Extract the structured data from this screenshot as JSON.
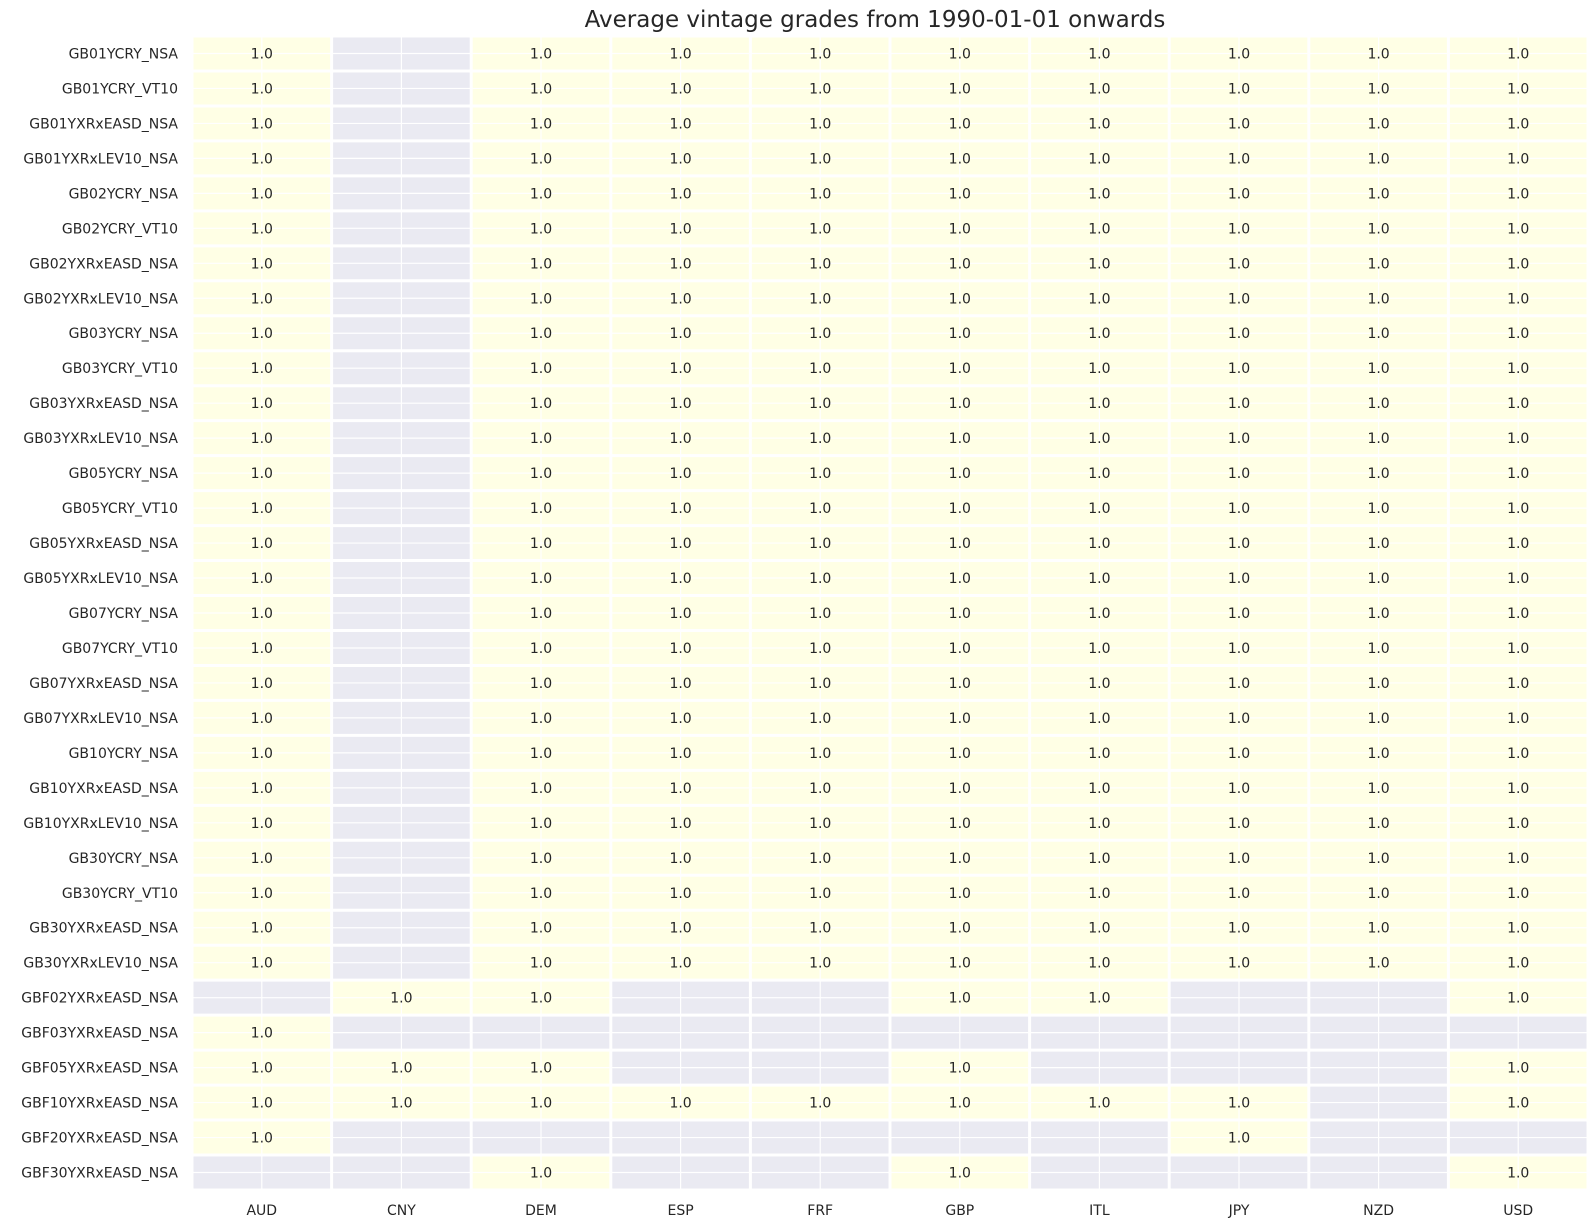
{
  "colors": {
    "filled": "#ffffe5",
    "missing": "#eaeaf2",
    "grid": "#ffffff",
    "text": "#262626"
  },
  "chart_data": {
    "type": "heatmap",
    "title": "Average vintage grades from 1990-01-01 onwards",
    "xlabel": "",
    "ylabel": "",
    "grid": true,
    "x_labels": [
      "AUD",
      "CNY",
      "DEM",
      "ESP",
      "FRF",
      "GBP",
      "ITL",
      "JPY",
      "NZD",
      "USD"
    ],
    "y_labels": [
      "GB01YCRY_NSA",
      "GB01YCRY_VT10",
      "GB01YXRxEASD_NSA",
      "GB01YXRxLEV10_NSA",
      "GB02YCRY_NSA",
      "GB02YCRY_VT10",
      "GB02YXRxEASD_NSA",
      "GB02YXRxLEV10_NSA",
      "GB03YCRY_NSA",
      "GB03YCRY_VT10",
      "GB03YXRxEASD_NSA",
      "GB03YXRxLEV10_NSA",
      "GB05YCRY_NSA",
      "GB05YCRY_VT10",
      "GB05YXRxEASD_NSA",
      "GB05YXRxLEV10_NSA",
      "GB07YCRY_NSA",
      "GB07YCRY_VT10",
      "GB07YXRxEASD_NSA",
      "GB07YXRxLEV10_NSA",
      "GB10YCRY_NSA",
      "GB10YXRxEASD_NSA",
      "GB10YXRxLEV10_NSA",
      "GB30YCRY_NSA",
      "GB30YCRY_VT10",
      "GB30YXRxEASD_NSA",
      "GB30YXRxLEV10_NSA",
      "GBF02YXRxEASD_NSA",
      "GBF03YXRxEASD_NSA",
      "GBF05YXRxEASD_NSA",
      "GBF10YXRxEASD_NSA",
      "GBF20YXRxEASD_NSA",
      "GBF30YXRxEASD_NSA"
    ],
    "values": [
      [
        1.0,
        null,
        1.0,
        1.0,
        1.0,
        1.0,
        1.0,
        1.0,
        1.0,
        1.0
      ],
      [
        1.0,
        null,
        1.0,
        1.0,
        1.0,
        1.0,
        1.0,
        1.0,
        1.0,
        1.0
      ],
      [
        1.0,
        null,
        1.0,
        1.0,
        1.0,
        1.0,
        1.0,
        1.0,
        1.0,
        1.0
      ],
      [
        1.0,
        null,
        1.0,
        1.0,
        1.0,
        1.0,
        1.0,
        1.0,
        1.0,
        1.0
      ],
      [
        1.0,
        null,
        1.0,
        1.0,
        1.0,
        1.0,
        1.0,
        1.0,
        1.0,
        1.0
      ],
      [
        1.0,
        null,
        1.0,
        1.0,
        1.0,
        1.0,
        1.0,
        1.0,
        1.0,
        1.0
      ],
      [
        1.0,
        null,
        1.0,
        1.0,
        1.0,
        1.0,
        1.0,
        1.0,
        1.0,
        1.0
      ],
      [
        1.0,
        null,
        1.0,
        1.0,
        1.0,
        1.0,
        1.0,
        1.0,
        1.0,
        1.0
      ],
      [
        1.0,
        null,
        1.0,
        1.0,
        1.0,
        1.0,
        1.0,
        1.0,
        1.0,
        1.0
      ],
      [
        1.0,
        null,
        1.0,
        1.0,
        1.0,
        1.0,
        1.0,
        1.0,
        1.0,
        1.0
      ],
      [
        1.0,
        null,
        1.0,
        1.0,
        1.0,
        1.0,
        1.0,
        1.0,
        1.0,
        1.0
      ],
      [
        1.0,
        null,
        1.0,
        1.0,
        1.0,
        1.0,
        1.0,
        1.0,
        1.0,
        1.0
      ],
      [
        1.0,
        null,
        1.0,
        1.0,
        1.0,
        1.0,
        1.0,
        1.0,
        1.0,
        1.0
      ],
      [
        1.0,
        null,
        1.0,
        1.0,
        1.0,
        1.0,
        1.0,
        1.0,
        1.0,
        1.0
      ],
      [
        1.0,
        null,
        1.0,
        1.0,
        1.0,
        1.0,
        1.0,
        1.0,
        1.0,
        1.0
      ],
      [
        1.0,
        null,
        1.0,
        1.0,
        1.0,
        1.0,
        1.0,
        1.0,
        1.0,
        1.0
      ],
      [
        1.0,
        null,
        1.0,
        1.0,
        1.0,
        1.0,
        1.0,
        1.0,
        1.0,
        1.0
      ],
      [
        1.0,
        null,
        1.0,
        1.0,
        1.0,
        1.0,
        1.0,
        1.0,
        1.0,
        1.0
      ],
      [
        1.0,
        null,
        1.0,
        1.0,
        1.0,
        1.0,
        1.0,
        1.0,
        1.0,
        1.0
      ],
      [
        1.0,
        null,
        1.0,
        1.0,
        1.0,
        1.0,
        1.0,
        1.0,
        1.0,
        1.0
      ],
      [
        1.0,
        null,
        1.0,
        1.0,
        1.0,
        1.0,
        1.0,
        1.0,
        1.0,
        1.0
      ],
      [
        1.0,
        null,
        1.0,
        1.0,
        1.0,
        1.0,
        1.0,
        1.0,
        1.0,
        1.0
      ],
      [
        1.0,
        null,
        1.0,
        1.0,
        1.0,
        1.0,
        1.0,
        1.0,
        1.0,
        1.0
      ],
      [
        1.0,
        null,
        1.0,
        1.0,
        1.0,
        1.0,
        1.0,
        1.0,
        1.0,
        1.0
      ],
      [
        1.0,
        null,
        1.0,
        1.0,
        1.0,
        1.0,
        1.0,
        1.0,
        1.0,
        1.0
      ],
      [
        1.0,
        null,
        1.0,
        1.0,
        1.0,
        1.0,
        1.0,
        1.0,
        1.0,
        1.0
      ],
      [
        1.0,
        null,
        1.0,
        1.0,
        1.0,
        1.0,
        1.0,
        1.0,
        1.0,
        1.0
      ],
      [
        null,
        1.0,
        1.0,
        null,
        null,
        1.0,
        1.0,
        null,
        null,
        1.0
      ],
      [
        1.0,
        null,
        null,
        null,
        null,
        null,
        null,
        null,
        null,
        null
      ],
      [
        1.0,
        1.0,
        1.0,
        null,
        null,
        1.0,
        null,
        null,
        null,
        1.0
      ],
      [
        1.0,
        1.0,
        1.0,
        1.0,
        1.0,
        1.0,
        1.0,
        1.0,
        null,
        1.0
      ],
      [
        1.0,
        null,
        null,
        null,
        null,
        null,
        null,
        1.0,
        null,
        null
      ],
      [
        null,
        null,
        1.0,
        null,
        null,
        1.0,
        null,
        null,
        null,
        1.0
      ]
    ]
  }
}
